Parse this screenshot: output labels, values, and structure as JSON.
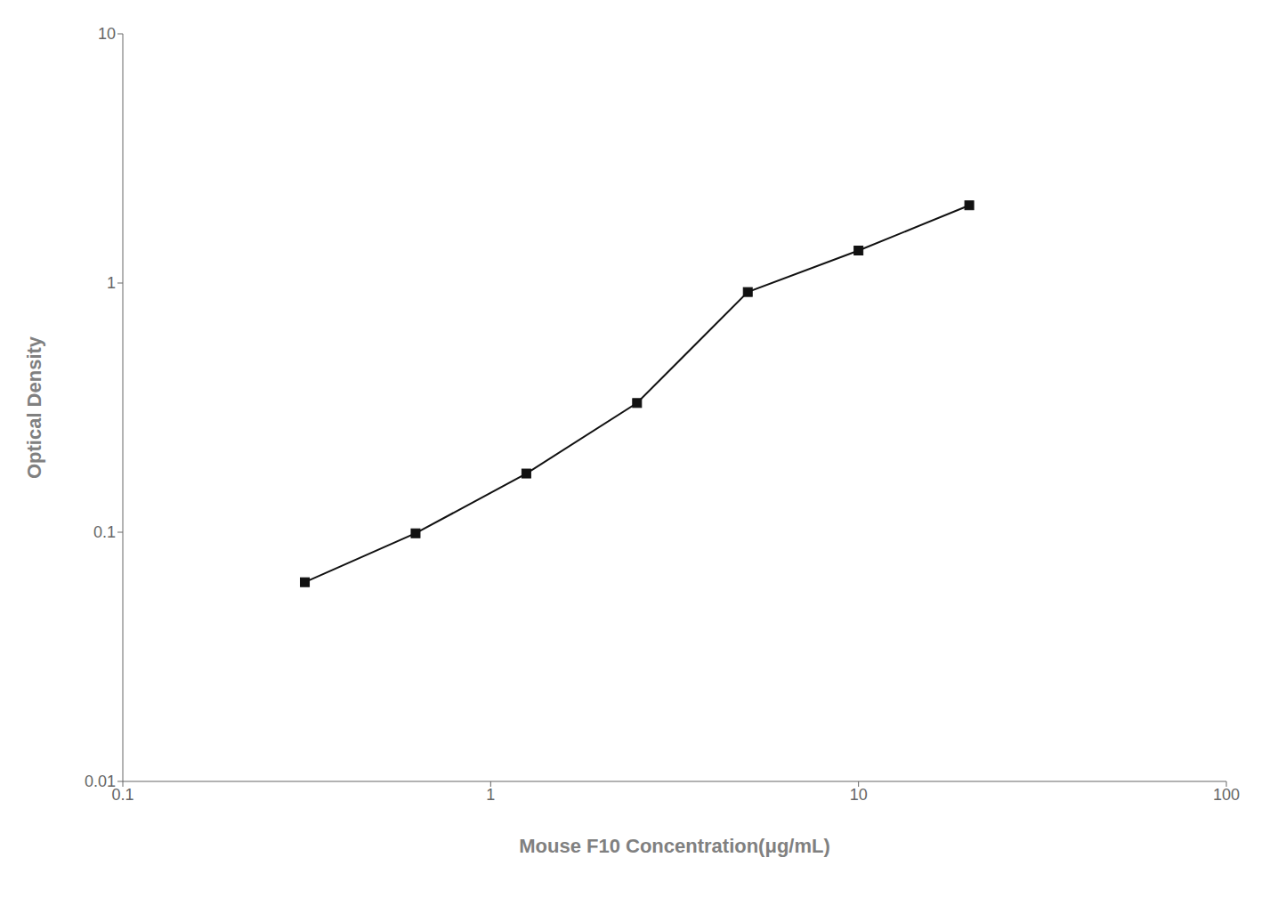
{
  "chart_data": {
    "type": "line",
    "x": [
      0.3125,
      0.625,
      1.25,
      2.5,
      5.0,
      10.0,
      20.0
    ],
    "values": [
      0.063,
      0.099,
      0.172,
      0.33,
      0.92,
      1.35,
      2.05
    ],
    "xlabel": "Mouse F10 Concentration(μg/mL)",
    "ylabel": "Optical Density",
    "xlim": [
      0.1,
      100
    ],
    "ylim": [
      0.01,
      10
    ],
    "xticks": [
      0.1,
      1,
      10,
      100
    ],
    "yticks": [
      0.01,
      0.1,
      1,
      10
    ],
    "log": true,
    "color": "#111111",
    "marker": "square",
    "grid": false
  }
}
